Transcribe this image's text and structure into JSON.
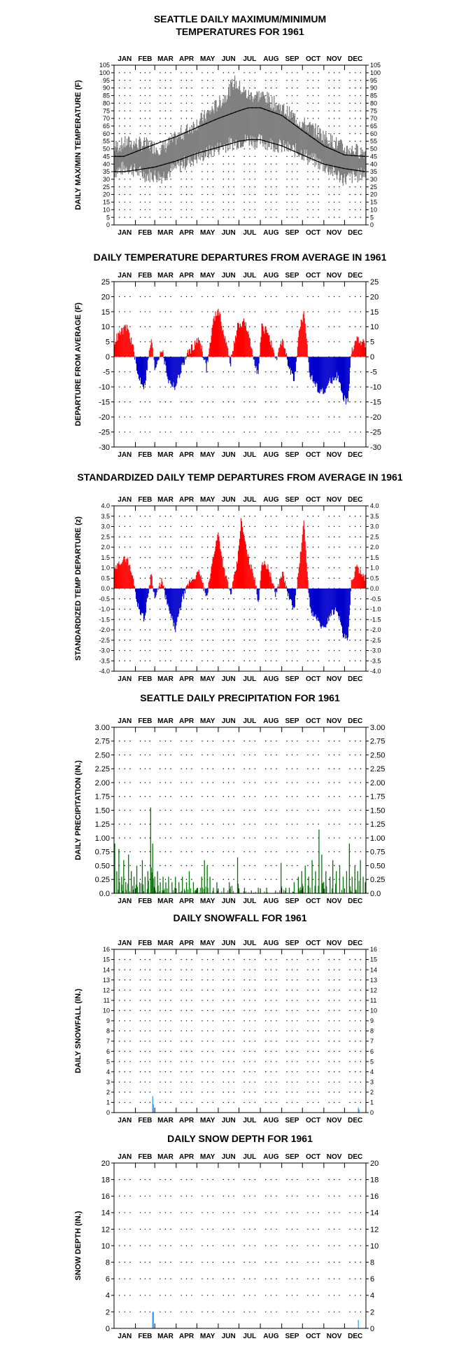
{
  "chart_data": [
    {
      "id": "temp",
      "type": "line",
      "title": "SEATTLE DAILY MAXIMUM/MINIMUM\nTEMPERATURES FOR 1961",
      "ylabel": "DAILY MAX/MIN TEMPERATURE (F)",
      "months": [
        "JAN",
        "FEB",
        "MAR",
        "APR",
        "MAY",
        "JUN",
        "JUL",
        "AUG",
        "SEP",
        "OCT",
        "NOV",
        "DEC"
      ],
      "ylim": [
        0,
        105
      ],
      "ytick_step": 5,
      "ytick_labels": [
        "0",
        "5",
        "10",
        "15",
        "20",
        "25",
        "30",
        "35",
        "40",
        "45",
        "50",
        "55",
        "60",
        "65",
        "70",
        "75",
        "80",
        "85",
        "90",
        "95",
        "100",
        "105"
      ],
      "grid": "dotted",
      "colors": {
        "daily_range": "#808080",
        "normals": "#000000"
      },
      "series": [
        {
          "key": "normal_max",
          "anchors": [
            [
              1,
              45
            ],
            [
              15,
              45
            ],
            [
              32,
              48
            ],
            [
              60,
              53
            ],
            [
              91,
              58
            ],
            [
              121,
              64
            ],
            [
              152,
              70
            ],
            [
              182,
              75
            ],
            [
              196,
              77
            ],
            [
              213,
              77
            ],
            [
              244,
              72
            ],
            [
              274,
              62
            ],
            [
              305,
              52
            ],
            [
              335,
              46
            ],
            [
              365,
              45
            ]
          ]
        },
        {
          "key": "normal_min",
          "anchors": [
            [
              1,
              35
            ],
            [
              15,
              35
            ],
            [
              32,
              36
            ],
            [
              60,
              38
            ],
            [
              91,
              42
            ],
            [
              121,
              47
            ],
            [
              152,
              51
            ],
            [
              182,
              55
            ],
            [
              196,
              56
            ],
            [
              213,
              56
            ],
            [
              244,
              52
            ],
            [
              274,
              46
            ],
            [
              305,
              40
            ],
            [
              335,
              37
            ],
            [
              365,
              35
            ]
          ]
        },
        {
          "key": "daily_range",
          "anchors": [
            [
              1,
              35,
              51
            ],
            [
              20,
              38,
              54
            ],
            [
              45,
              33,
              53
            ],
            [
              70,
              32,
              50
            ],
            [
              100,
              40,
              60
            ],
            [
              130,
              46,
              70
            ],
            [
              160,
              52,
              83
            ],
            [
              175,
              54,
              94
            ],
            [
              195,
              56,
              85
            ],
            [
              215,
              55,
              85
            ],
            [
              240,
              52,
              78
            ],
            [
              270,
              48,
              68
            ],
            [
              300,
              40,
              60
            ],
            [
              335,
              30,
              50
            ],
            [
              365,
              34,
              48
            ]
          ]
        }
      ]
    },
    {
      "id": "dep",
      "type": "bar",
      "title": "DAILY TEMPERATURE DEPARTURES FROM AVERAGE IN 1961",
      "ylabel": "DEPARTURE FROM AVERAGE (F)",
      "months": [
        "JAN",
        "FEB",
        "MAR",
        "APR",
        "MAY",
        "JUN",
        "JUL",
        "AUG",
        "SEP",
        "OCT",
        "NOV",
        "DEC"
      ],
      "ylim": [
        -30,
        25
      ],
      "ytick_step": 5,
      "ytick_labels": [
        "-30",
        "-25",
        "-20",
        "-15",
        "-10",
        "-5",
        "0",
        "5",
        "10",
        "15",
        "20",
        "25"
      ],
      "grid": "dotted",
      "colors": {
        "positive": "#ff0000",
        "negative": "#0000cc"
      },
      "series": [
        {
          "key": "departure",
          "anchors": [
            [
              1,
              5
            ],
            [
              10,
              8
            ],
            [
              20,
              10
            ],
            [
              30,
              2
            ],
            [
              35,
              -6
            ],
            [
              45,
              -10
            ],
            [
              55,
              6
            ],
            [
              60,
              -4
            ],
            [
              70,
              3
            ],
            [
              80,
              -8
            ],
            [
              90,
              -10
            ],
            [
              100,
              -3
            ],
            [
              110,
              2
            ],
            [
              125,
              6
            ],
            [
              135,
              -4
            ],
            [
              145,
              12
            ],
            [
              152,
              16
            ],
            [
              160,
              8
            ],
            [
              170,
              -2
            ],
            [
              180,
              10
            ],
            [
              190,
              12
            ],
            [
              200,
              3
            ],
            [
              210,
              -6
            ],
            [
              215,
              10
            ],
            [
              225,
              8
            ],
            [
              235,
              -2
            ],
            [
              245,
              6
            ],
            [
              255,
              -4
            ],
            [
              262,
              -8
            ],
            [
              270,
              10
            ],
            [
              276,
              14
            ],
            [
              285,
              -6
            ],
            [
              295,
              -10
            ],
            [
              305,
              -12
            ],
            [
              315,
              -8
            ],
            [
              325,
              -6
            ],
            [
              333,
              -14
            ],
            [
              340,
              -15
            ],
            [
              345,
              2
            ],
            [
              352,
              6
            ],
            [
              360,
              5
            ],
            [
              365,
              4
            ]
          ]
        }
      ]
    },
    {
      "id": "std",
      "type": "bar",
      "title": "STANDARDIZED DAILY TEMP DEPARTURES FROM AVERAGE IN 1961",
      "ylabel": "STANDARDIZED TEMP DEPARTURE (z)",
      "months": [
        "JAN",
        "FEB",
        "MAR",
        "APR",
        "MAY",
        "JUN",
        "JUL",
        "AUG",
        "SEP",
        "OCT",
        "NOV",
        "DEC"
      ],
      "ylim": [
        -4.0,
        4.0
      ],
      "ytick_step": 0.5,
      "ytick_labels": [
        "-4.0",
        "-3.5",
        "-3.0",
        "-2.5",
        "-2.0",
        "-1.5",
        "-1.0",
        "-0.5",
        "0.0",
        "0.5",
        "1.0",
        "1.5",
        "2.0",
        "2.5",
        "3.0",
        "3.5",
        "4.0"
      ],
      "grid": "dotted",
      "colors": {
        "positive": "#ff0000",
        "negative": "#0000cc"
      },
      "series": [
        {
          "key": "standardized",
          "anchors": [
            [
              1,
              0.8
            ],
            [
              10,
              1.3
            ],
            [
              20,
              1.5
            ],
            [
              30,
              0.3
            ],
            [
              35,
              -0.8
            ],
            [
              45,
              -1.5
            ],
            [
              55,
              0.8
            ],
            [
              60,
              -0.5
            ],
            [
              70,
              0.4
            ],
            [
              80,
              -1.0
            ],
            [
              90,
              -2.0
            ],
            [
              100,
              -0.5
            ],
            [
              110,
              0.3
            ],
            [
              125,
              0.8
            ],
            [
              135,
              -0.5
            ],
            [
              145,
              1.6
            ],
            [
              152,
              2.7
            ],
            [
              160,
              1.0
            ],
            [
              170,
              -0.3
            ],
            [
              180,
              1.3
            ],
            [
              185,
              3.3
            ],
            [
              195,
              1.5
            ],
            [
              205,
              0.5
            ],
            [
              210,
              -0.8
            ],
            [
              215,
              1.3
            ],
            [
              225,
              1.0
            ],
            [
              235,
              -0.3
            ],
            [
              245,
              0.8
            ],
            [
              255,
              -0.5
            ],
            [
              262,
              -1.0
            ],
            [
              270,
              1.3
            ],
            [
              276,
              3.2
            ],
            [
              285,
              -1.0
            ],
            [
              295,
              -1.5
            ],
            [
              305,
              -2.0
            ],
            [
              315,
              -1.2
            ],
            [
              325,
              -1.0
            ],
            [
              333,
              -2.3
            ],
            [
              340,
              -2.5
            ],
            [
              345,
              0.3
            ],
            [
              352,
              1.0
            ],
            [
              360,
              0.8
            ],
            [
              365,
              0.5
            ]
          ]
        }
      ]
    },
    {
      "id": "precip",
      "type": "bar",
      "title": "SEATTLE DAILY PRECIPITATION FOR 1961",
      "ylabel": "DAILY PRECIPITATION (IN.)",
      "months": [
        "JAN",
        "FEB",
        "MAR",
        "APR",
        "MAY",
        "JUN",
        "JUL",
        "AUG",
        "SEP",
        "OCT",
        "NOV",
        "DEC"
      ],
      "ylim": [
        0,
        3.0
      ],
      "ytick_step": 0.25,
      "ytick_labels": [
        "0.0",
        "0.25",
        "0.50",
        "0.75",
        "1.00",
        "1.25",
        "1.50",
        "1.75",
        "2.00",
        "2.25",
        "2.50",
        "2.75",
        "3.00"
      ],
      "grid": "dotted",
      "colors": {
        "bars": "#007700"
      },
      "series": [
        {
          "key": "precipitation",
          "spikes": [
            [
              2,
              0.9
            ],
            [
              5,
              0.4
            ],
            [
              8,
              0.8
            ],
            [
              12,
              0.3
            ],
            [
              15,
              0.6
            ],
            [
              18,
              0.2
            ],
            [
              22,
              0.7
            ],
            [
              26,
              0.4
            ],
            [
              30,
              0.3
            ],
            [
              34,
              0.5
            ],
            [
              38,
              0.2
            ],
            [
              42,
              0.6
            ],
            [
              46,
              0.3
            ],
            [
              50,
              0.4
            ],
            [
              54,
              1.55
            ],
            [
              57,
              0.9
            ],
            [
              60,
              0.3
            ],
            [
              64,
              0.4
            ],
            [
              68,
              0.2
            ],
            [
              72,
              0.3
            ],
            [
              76,
              0.2
            ],
            [
              80,
              0.3
            ],
            [
              85,
              0.2
            ],
            [
              90,
              0.3
            ],
            [
              95,
              0.2
            ],
            [
              100,
              0.3
            ],
            [
              106,
              0.2
            ],
            [
              110,
              0.4
            ],
            [
              116,
              0.2
            ],
            [
              122,
              0.1
            ],
            [
              128,
              0.3
            ],
            [
              132,
              0.6
            ],
            [
              136,
              0.5
            ],
            [
              140,
              0.3
            ],
            [
              145,
              0.1
            ],
            [
              150,
              0.2
            ],
            [
              160,
              0.1
            ],
            [
              168,
              0.2
            ],
            [
              180,
              0.65
            ],
            [
              190,
              0.1
            ],
            [
              200,
              0.05
            ],
            [
              210,
              0.1
            ],
            [
              222,
              0.1
            ],
            [
              235,
              0.05
            ],
            [
              243,
              0.55
            ],
            [
              250,
              0.1
            ],
            [
              255,
              0.1
            ],
            [
              262,
              0.2
            ],
            [
              268,
              0.3
            ],
            [
              273,
              0.4
            ],
            [
              278,
              0.5
            ],
            [
              283,
              0.3
            ],
            [
              288,
              0.6
            ],
            [
              293,
              0.4
            ],
            [
              298,
              1.15
            ],
            [
              302,
              0.7
            ],
            [
              308,
              0.4
            ],
            [
              314,
              0.3
            ],
            [
              318,
              0.6
            ],
            [
              323,
              0.4
            ],
            [
              328,
              0.5
            ],
            [
              333,
              0.3
            ],
            [
              338,
              0.4
            ],
            [
              342,
              0.9
            ],
            [
              346,
              0.3
            ],
            [
              350,
              0.5
            ],
            [
              354,
              0.4
            ],
            [
              358,
              0.6
            ],
            [
              362,
              0.3
            ],
            [
              365,
              0.2
            ]
          ]
        }
      ]
    },
    {
      "id": "snow",
      "type": "bar",
      "title": "DAILY SNOWFALL FOR 1961",
      "ylabel": "DAILY SNOWFALL (IN.)",
      "months": [
        "JAN",
        "FEB",
        "MAR",
        "APR",
        "MAY",
        "JUN",
        "JUL",
        "AUG",
        "SEP",
        "OCT",
        "NOV",
        "DEC"
      ],
      "ylim": [
        0,
        16
      ],
      "ytick_step": 1,
      "ytick_labels": [
        "0",
        "1",
        "2",
        "3",
        "4",
        "5",
        "6",
        "7",
        "8",
        "9",
        "10",
        "11",
        "12",
        "13",
        "14",
        "15",
        "16"
      ],
      "grid": "dotted",
      "colors": {
        "bars": "#3399ff"
      },
      "series": [
        {
          "key": "snowfall",
          "spikes": [
            [
              57,
              1.6
            ],
            [
              58,
              0.8
            ],
            [
              355,
              0.5
            ],
            [
              356,
              0.3
            ]
          ]
        }
      ]
    },
    {
      "id": "depth",
      "type": "bar",
      "title": "DAILY SNOW DEPTH FOR 1961",
      "ylabel": "SNOW DEPTH (IN.)",
      "months": [
        "JAN",
        "FEB",
        "MAR",
        "APR",
        "MAY",
        "JUN",
        "JUL",
        "AUG",
        "SEP",
        "OCT",
        "NOV",
        "DEC"
      ],
      "ylim": [
        0,
        20
      ],
      "ytick_step": 2,
      "ytick_labels": [
        "0",
        "2",
        "4",
        "6",
        "8",
        "10",
        "12",
        "14",
        "16",
        "18",
        "20"
      ],
      "grid": "dotted",
      "colors": {
        "bars": "#3399ff"
      },
      "series": [
        {
          "key": "snow_depth",
          "spikes": [
            [
              57,
              2
            ],
            [
              58,
              2
            ],
            [
              355,
              1
            ]
          ]
        }
      ]
    }
  ]
}
